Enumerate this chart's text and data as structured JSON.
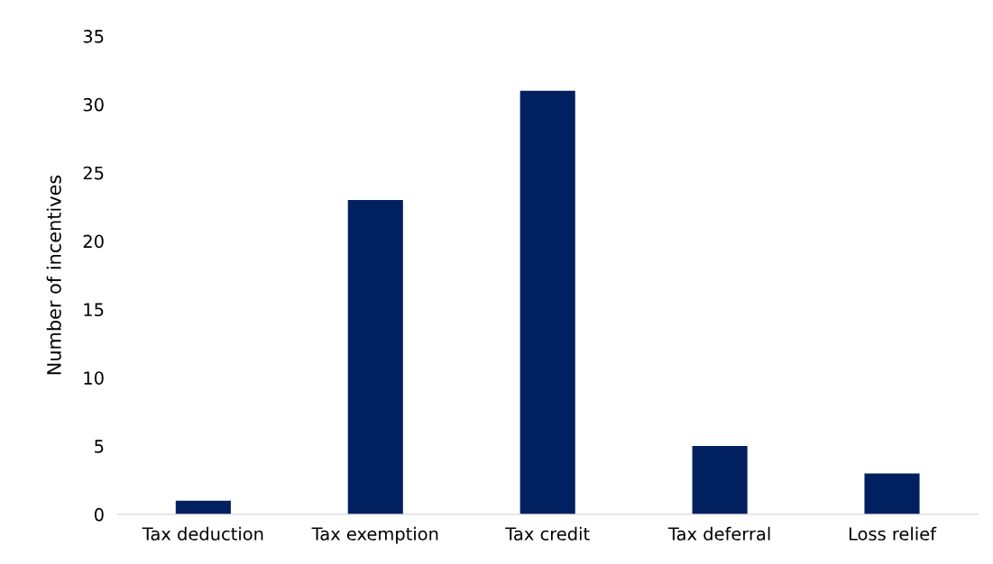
{
  "chart_data": {
    "type": "bar",
    "ylabel": "Number of incentives",
    "categories": [
      "Tax deduction",
      "Tax exemption",
      "Tax credit",
      "Tax deferral",
      "Loss relief"
    ],
    "values": [
      1,
      23,
      31,
      5,
      3
    ],
    "color": "#002060",
    "ylim": [
      0,
      35
    ],
    "yticks": [
      0,
      5,
      10,
      15,
      20,
      25,
      30,
      35
    ],
    "grid": false,
    "legend": false
  }
}
